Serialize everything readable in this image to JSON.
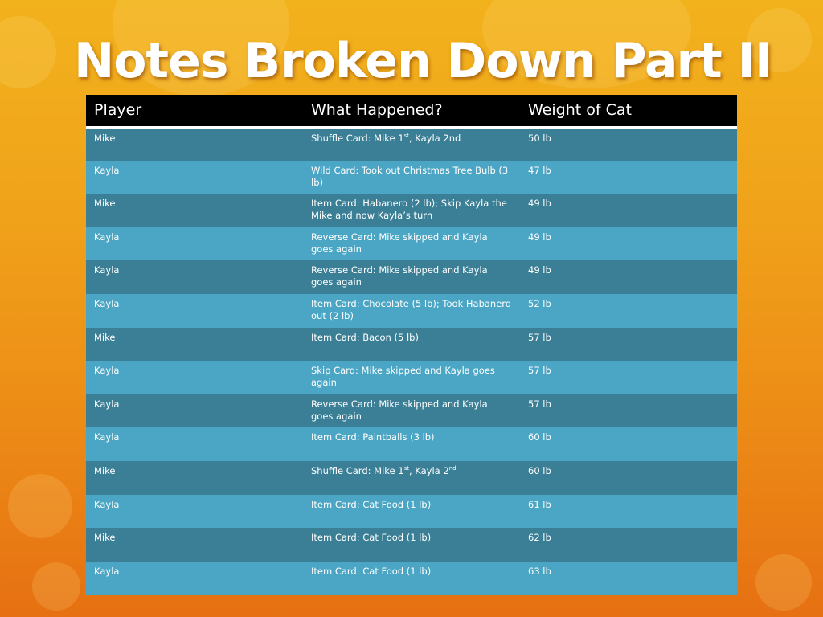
{
  "slide": {
    "title": "Notes Broken Down Part II",
    "background_colors": [
      "#f2b21c",
      "#e67012"
    ],
    "table": {
      "header_color": "#000000",
      "row_color_dark": "#3a7f96",
      "row_color_light": "#4aa6c4",
      "columns": [
        "Player",
        "What Happened?",
        "Weight of Cat"
      ],
      "rows": [
        {
          "player": "Mike",
          "event_a": "Shuffle Card: Mike 1",
          "event_sup1": "st",
          "event_b": ", Kayla 2nd",
          "event_sup2": "",
          "event_c": "",
          "weight": "50 lb"
        },
        {
          "player": "Kayla",
          "event_a": "Wild Card: Took out Christmas Tree Bulb (3 lb)",
          "event_sup1": "",
          "event_b": "",
          "event_sup2": "",
          "event_c": "",
          "weight": "47 lb"
        },
        {
          "player": "Mike",
          "event_a": "Item Card: Habanero (2 lb); Skip Kayla the Mike and now Kayla’s turn",
          "event_sup1": "",
          "event_b": "",
          "event_sup2": "",
          "event_c": "",
          "weight": "49 lb"
        },
        {
          "player": "Kayla",
          "event_a": "Reverse Card: Mike skipped and Kayla goes again",
          "event_sup1": "",
          "event_b": "",
          "event_sup2": "",
          "event_c": "",
          "weight": "49 lb"
        },
        {
          "player": "Kayla",
          "event_a": "Reverse Card: Mike skipped and Kayla goes again",
          "event_sup1": "",
          "event_b": "",
          "event_sup2": "",
          "event_c": "",
          "weight": "49 lb"
        },
        {
          "player": "Kayla",
          "event_a": "Item Card: Chocolate (5 lb); Took Habanero out (2 lb)",
          "event_sup1": "",
          "event_b": "",
          "event_sup2": "",
          "event_c": "",
          "weight": "52 lb"
        },
        {
          "player": "Mike",
          "event_a": "Item Card: Bacon (5 lb)",
          "event_sup1": "",
          "event_b": "",
          "event_sup2": "",
          "event_c": "",
          "weight": "57 lb"
        },
        {
          "player": "Kayla",
          "event_a": "Skip Card: Mike skipped and Kayla goes again",
          "event_sup1": "",
          "event_b": "",
          "event_sup2": "",
          "event_c": "",
          "weight": "57 lb"
        },
        {
          "player": "Kayla",
          "event_a": "Reverse Card: Mike skipped and Kayla goes again",
          "event_sup1": "",
          "event_b": "",
          "event_sup2": "",
          "event_c": "",
          "weight": "57 lb"
        },
        {
          "player": "Kayla",
          "event_a": "Item Card: Paintballs (3 lb)",
          "event_sup1": "",
          "event_b": "",
          "event_sup2": "",
          "event_c": "",
          "weight": "60 lb"
        },
        {
          "player": "Mike",
          "event_a": "Shuffle Card: Mike 1",
          "event_sup1": "st",
          "event_b": ", Kayla 2",
          "event_sup2": "nd",
          "event_c": "",
          "weight": "60 lb"
        },
        {
          "player": "Kayla",
          "event_a": "Item Card: Cat Food (1 lb)",
          "event_sup1": "",
          "event_b": "",
          "event_sup2": "",
          "event_c": "",
          "weight": "61 lb"
        },
        {
          "player": "Mike",
          "event_a": "Item Card: Cat Food (1 lb)",
          "event_sup1": "",
          "event_b": "",
          "event_sup2": "",
          "event_c": "",
          "weight": "62 lb"
        },
        {
          "player": "Kayla",
          "event_a": "Item Card: Cat Food (1 lb)",
          "event_sup1": "",
          "event_b": "",
          "event_sup2": "",
          "event_c": "",
          "weight": "63 lb"
        }
      ]
    }
  }
}
